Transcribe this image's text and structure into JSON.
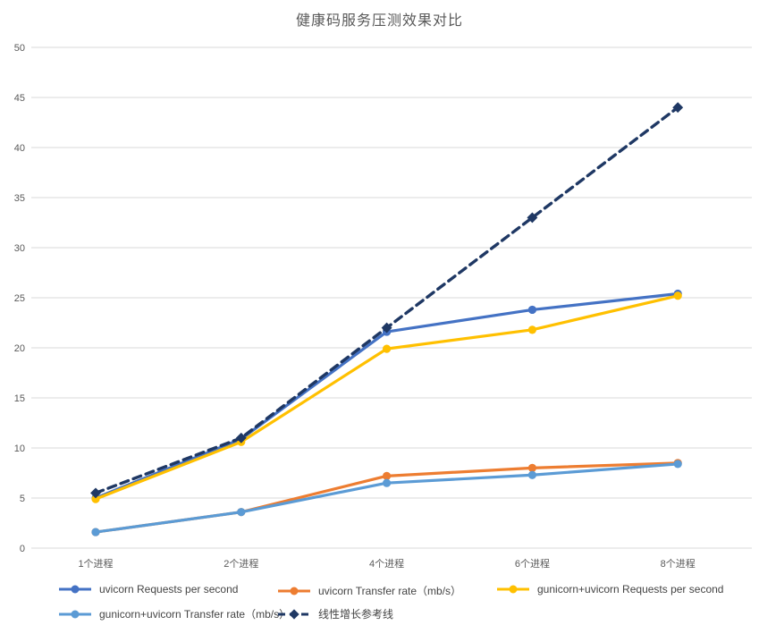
{
  "chart_data": {
    "type": "line",
    "title": "健康码服务压测效果对比",
    "categories": [
      "1个进程",
      "2个进程",
      "4个进程",
      "6个进程",
      "8个进程"
    ],
    "series": [
      {
        "name": "uvicorn Requests per second",
        "color": "#4472C4",
        "dashed": false,
        "marker": "circle",
        "values": [
          5.0,
          10.9,
          21.6,
          23.8,
          25.4
        ]
      },
      {
        "name": "uvicorn Transfer rate（mb/s）",
        "color": "#ED7D31",
        "dashed": false,
        "marker": "circle",
        "values": [
          1.6,
          3.6,
          7.2,
          8.0,
          8.5
        ]
      },
      {
        "name": "gunicorn+uvicorn Requests per second",
        "color": "#FFC000",
        "dashed": false,
        "marker": "circle",
        "values": [
          4.9,
          10.6,
          19.9,
          21.8,
          25.2
        ]
      },
      {
        "name": "gunicorn+uvicorn Transfer rate（mb/s）",
        "color": "#5B9BD5",
        "dashed": false,
        "marker": "circle",
        "values": [
          1.6,
          3.6,
          6.5,
          7.3,
          8.4
        ]
      },
      {
        "name": "线性增长参考线",
        "color": "#1F3864",
        "dashed": true,
        "marker": "diamond",
        "values": [
          5.5,
          11,
          22,
          33,
          44
        ]
      }
    ],
    "y_axis": {
      "min": 0,
      "max": 50,
      "step": 5,
      "tick_labels": [
        "0",
        "5",
        "10",
        "15",
        "20",
        "25",
        "30",
        "35",
        "40",
        "45",
        "50"
      ]
    },
    "x_axis": {
      "tick_labels": [
        "1个进程",
        "2个进程",
        "4个进程",
        "6个进程",
        "8个进程"
      ]
    },
    "grid": true,
    "legend_position": "bottom",
    "colors": {
      "grid": "#D9D9D9",
      "axis_text": "#595959",
      "title_text": "#595959",
      "legend_text": "#444444",
      "background": "#FFFFFF"
    }
  }
}
